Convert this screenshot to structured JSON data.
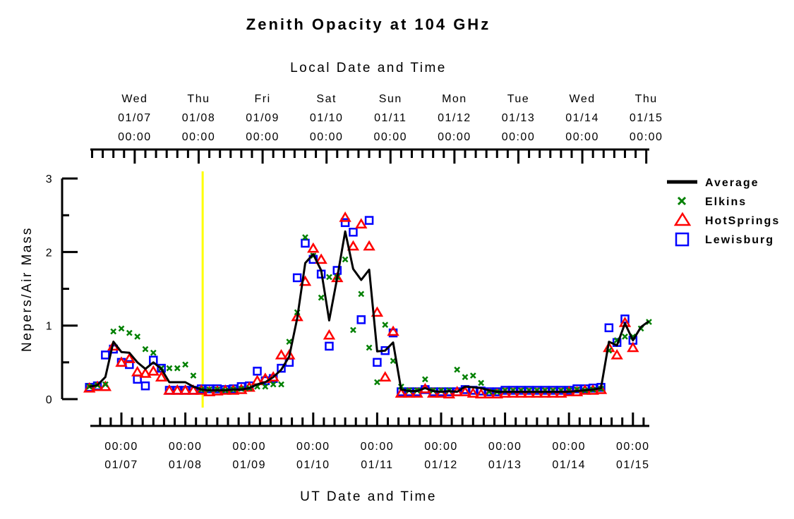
{
  "chart_data": {
    "type": "scatter",
    "title": "Zenith Opacity at 104 GHz",
    "top_xlabel": "Local Date and Time",
    "xlabel": "UT Date and Time",
    "ylabel": "Nepers/Air Mass",
    "ylim": [
      0,
      3
    ],
    "yticks": [
      "0",
      "1",
      "2",
      "3"
    ],
    "grid": false,
    "legend_position": "right",
    "top_ticks": [
      {
        "day": "Wed",
        "date": "01/07",
        "time": "00:00"
      },
      {
        "day": "Thu",
        "date": "01/08",
        "time": "00:00"
      },
      {
        "day": "Fri",
        "date": "01/09",
        "time": "00:00"
      },
      {
        "day": "Sat",
        "date": "01/10",
        "time": "00:00"
      },
      {
        "day": "Sun",
        "date": "01/11",
        "time": "00:00"
      },
      {
        "day": "Mon",
        "date": "01/12",
        "time": "00:00"
      },
      {
        "day": "Tue",
        "date": "01/13",
        "time": "00:00"
      },
      {
        "day": "Wed",
        "date": "01/14",
        "time": "00:00"
      },
      {
        "day": "Thu",
        "date": "01/15",
        "time": "00:00"
      }
    ],
    "bottom_ticks": [
      {
        "time": "00:00",
        "date": "01/07"
      },
      {
        "time": "00:00",
        "date": "01/08"
      },
      {
        "time": "00:00",
        "date": "01/09"
      },
      {
        "time": "00:00",
        "date": "01/10"
      },
      {
        "time": "00:00",
        "date": "01/11"
      },
      {
        "time": "00:00",
        "date": "01/12"
      },
      {
        "time": "00:00",
        "date": "01/13"
      },
      {
        "time": "00:00",
        "date": "01/14"
      },
      {
        "time": "00:00",
        "date": "01/15"
      }
    ],
    "vertical_marker": {
      "x": "01/08 06:30",
      "color": "#ffff00"
    },
    "x": [
      "01/06 12:00",
      "01/06 15:00",
      "01/06 18:00",
      "01/06 21:00",
      "01/07 00:00",
      "01/07 03:00",
      "01/07 06:00",
      "01/07 09:00",
      "01/07 12:00",
      "01/07 15:00",
      "01/07 18:00",
      "01/07 21:00",
      "01/08 00:00",
      "01/08 03:00",
      "01/08 06:00",
      "01/08 09:00",
      "01/08 12:00",
      "01/08 15:00",
      "01/08 18:00",
      "01/08 21:00",
      "01/09 00:00",
      "01/09 03:00",
      "01/09 06:00",
      "01/09 09:00",
      "01/09 12:00",
      "01/09 15:00",
      "01/09 18:00",
      "01/09 21:00",
      "01/10 00:00",
      "01/10 03:00",
      "01/10 06:00",
      "01/10 09:00",
      "01/10 12:00",
      "01/10 15:00",
      "01/10 18:00",
      "01/10 21:00",
      "01/11 00:00",
      "01/11 03:00",
      "01/11 06:00",
      "01/11 09:00",
      "01/11 12:00",
      "01/11 15:00",
      "01/11 18:00",
      "01/11 21:00",
      "01/12 00:00",
      "01/12 03:00",
      "01/12 06:00",
      "01/12 09:00",
      "01/12 12:00",
      "01/12 15:00",
      "01/12 18:00",
      "01/12 21:00",
      "01/13 00:00",
      "01/13 03:00",
      "01/13 06:00",
      "01/13 09:00",
      "01/13 12:00",
      "01/13 15:00",
      "01/13 18:00",
      "01/13 21:00",
      "01/14 00:00",
      "01/14 03:00",
      "01/14 06:00",
      "01/14 09:00",
      "01/14 12:00",
      "01/14 15:00",
      "01/14 18:00",
      "01/14 21:00",
      "01/15 00:00",
      "01/15 03:00",
      "01/15 06:00"
    ],
    "series": [
      {
        "name": "Average",
        "style": "line",
        "color": "#000000",
        "values": [
          0.17,
          0.19,
          0.3,
          0.78,
          0.64,
          0.63,
          0.5,
          0.41,
          0.5,
          0.41,
          0.23,
          0.23,
          0.23,
          0.17,
          0.13,
          0.12,
          0.12,
          0.12,
          0.13,
          0.13,
          0.15,
          0.2,
          0.23,
          0.3,
          0.4,
          0.58,
          1.1,
          1.85,
          1.97,
          1.75,
          1.07,
          1.65,
          2.28,
          1.77,
          1.62,
          1.76,
          0.65,
          0.66,
          0.77,
          0.13,
          0.11,
          0.11,
          0.15,
          0.11,
          0.1,
          0.11,
          0.1,
          0.17,
          0.16,
          0.15,
          0.12,
          0.1,
          0.1,
          0.1,
          0.1,
          0.1,
          0.1,
          0.1,
          0.1,
          0.1,
          0.1,
          0.11,
          0.12,
          0.13,
          0.15,
          0.78,
          0.73,
          1.03,
          0.8,
          0.98,
          1.06
        ]
      },
      {
        "name": "Elkins",
        "style": "x",
        "color": "#008000",
        "values": [
          0.17,
          0.19,
          0.2,
          0.92,
          0.96,
          0.9,
          0.85,
          0.68,
          0.63,
          0.42,
          0.42,
          0.42,
          0.47,
          0.32,
          0.13,
          0.13,
          0.13,
          0.12,
          0.13,
          0.14,
          0.15,
          0.17,
          0.17,
          0.2,
          0.2,
          0.78,
          1.18,
          2.2,
          1.95,
          1.38,
          1.66,
          1.66,
          1.9,
          0.94,
          1.43,
          0.7,
          0.23,
          1.01,
          0.52,
          0.17,
          0.12,
          0.12,
          0.27,
          0.12,
          0.12,
          0.12,
          0.4,
          0.3,
          0.32,
          0.22,
          0.1,
          0.1,
          0.12,
          0.12,
          0.12,
          0.12,
          0.12,
          0.12,
          0.12,
          0.12,
          0.12,
          0.13,
          0.12,
          0.13,
          0.14,
          0.66,
          0.8,
          0.85,
          0.85,
          0.96,
          1.05
        ]
      },
      {
        "name": "HotSprings",
        "style": "triangle",
        "color": "#ff0000",
        "values": [
          0.15,
          0.17,
          0.17,
          0.72,
          0.5,
          0.55,
          0.37,
          0.35,
          0.38,
          0.3,
          0.12,
          0.12,
          0.12,
          0.12,
          0.12,
          0.1,
          0.11,
          0.12,
          0.12,
          0.13,
          0.16,
          0.25,
          0.28,
          0.3,
          0.6,
          0.6,
          1.12,
          1.6,
          2.05,
          1.9,
          0.87,
          1.65,
          2.47,
          2.08,
          2.38,
          2.08,
          1.18,
          0.3,
          0.92,
          0.08,
          0.08,
          0.08,
          0.14,
          0.08,
          0.08,
          0.07,
          0.1,
          0.1,
          0.08,
          0.07,
          0.07,
          0.07,
          0.08,
          0.08,
          0.08,
          0.08,
          0.08,
          0.08,
          0.08,
          0.08,
          0.1,
          0.1,
          0.12,
          0.12,
          0.13,
          0.7,
          0.6,
          1.04,
          0.7,
          null,
          null
        ]
      },
      {
        "name": "Lewisburg",
        "style": "square",
        "color": "#0000ff",
        "values": [
          0.16,
          0.18,
          0.6,
          0.68,
          0.5,
          0.47,
          0.27,
          0.18,
          0.53,
          0.42,
          0.12,
          0.12,
          0.12,
          0.12,
          0.14,
          0.14,
          0.14,
          0.13,
          0.14,
          0.17,
          0.18,
          0.38,
          0.25,
          0.28,
          0.42,
          0.5,
          1.65,
          2.12,
          1.9,
          1.7,
          0.72,
          1.75,
          2.4,
          2.27,
          1.08,
          2.43,
          0.5,
          0.66,
          0.9,
          0.1,
          0.1,
          0.1,
          0.13,
          0.1,
          0.1,
          0.1,
          0.1,
          0.13,
          0.12,
          0.11,
          0.1,
          0.1,
          0.12,
          0.12,
          0.12,
          0.12,
          0.12,
          0.12,
          0.12,
          0.12,
          0.12,
          0.14,
          0.14,
          0.15,
          0.16,
          0.97,
          0.77,
          1.09,
          0.8,
          null,
          null
        ]
      }
    ]
  }
}
